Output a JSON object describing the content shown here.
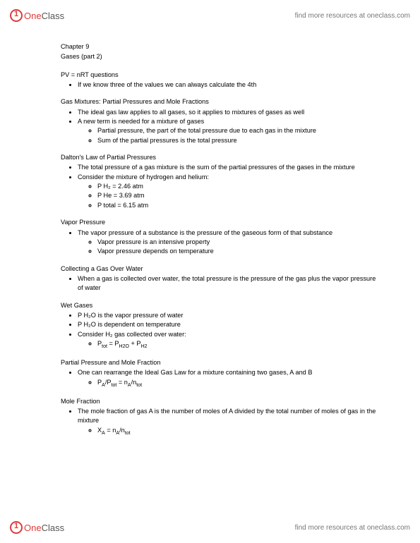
{
  "brand": {
    "one": "One",
    "class": "Class",
    "tagline": "find more resources at oneclass.com"
  },
  "doc": {
    "chapter": "Chapter 9",
    "subtitle": "Gases (part 2)",
    "sections": {
      "pvnrt": {
        "title": "PV = nRT questions",
        "b1": "If we know three of the values we can always calculate the 4th"
      },
      "mixtures": {
        "title": "Gas Mixtures: Partial Pressures and Mole Fractions",
        "b1": "The ideal gas law applies to all gases, so it applies to mixtures of gases as well",
        "b2": "A new term is needed for a mixture of gases",
        "s1": "Partial pressure, the part of the total pressure due to each gas in the mixture",
        "s2": "Sum of the partial pressures is the total pressure"
      },
      "dalton": {
        "title": "Dalton's Law of Partial Pressures",
        "b1": "The total pressure of a gas mixture is the sum of the partial pressures of the gases in the mixture",
        "b2": "Consider the mixture of hydrogen and helium:",
        "s1": "P H₂ = 2.46 atm",
        "s2": "P He = 3.69 atm",
        "s3": "P total = 6.15 atm"
      },
      "vapor": {
        "title": "Vapor Pressure",
        "b1": "The vapor pressure of a substance is the pressure of the gaseous form of that substance",
        "s1": "Vapor pressure is an intensive property",
        "s2": "Vapor pressure depends on temperature"
      },
      "collecting": {
        "title": "Collecting a Gas Over Water",
        "b1": "When a gas is collected over water, the total pressure is the pressure of the gas plus the vapor pressure of water"
      },
      "wet": {
        "title": "Wet Gases",
        "b1": "P H₂O is the vapor pressure of water",
        "b2": "P H₂O is dependent on temperature",
        "b3": "Consider H₂ gas collected over water:",
        "s1_pre": "P",
        "s1_sub1": "tot",
        "s1_mid": " = P",
        "s1_sub2": "H2O",
        "s1_mid2": " + P",
        "s1_sub3": "H2"
      },
      "ppmf": {
        "title": "Partial Pressure and Mole Fraction",
        "b1": "One can rearrange the Ideal Gas Law for a mixture containing two gases, A and B",
        "s1_pre": "P",
        "s1_sub1": "A",
        "s1_mid1": "/P",
        "s1_sub2": "tot",
        "s1_mid2": " = n",
        "s1_sub3": "A",
        "s1_mid3": "/n",
        "s1_sub4": "tot"
      },
      "molefrac": {
        "title": "Mole Fraction",
        "b1": "The mole fraction of gas A is the number of moles of A divided by the total number of moles of gas in the mixture",
        "s1_pre": "X",
        "s1_sub1": "A",
        "s1_mid1": " = n",
        "s1_sub2": "A",
        "s1_mid2": "/n",
        "s1_sub3": "tot"
      }
    }
  }
}
